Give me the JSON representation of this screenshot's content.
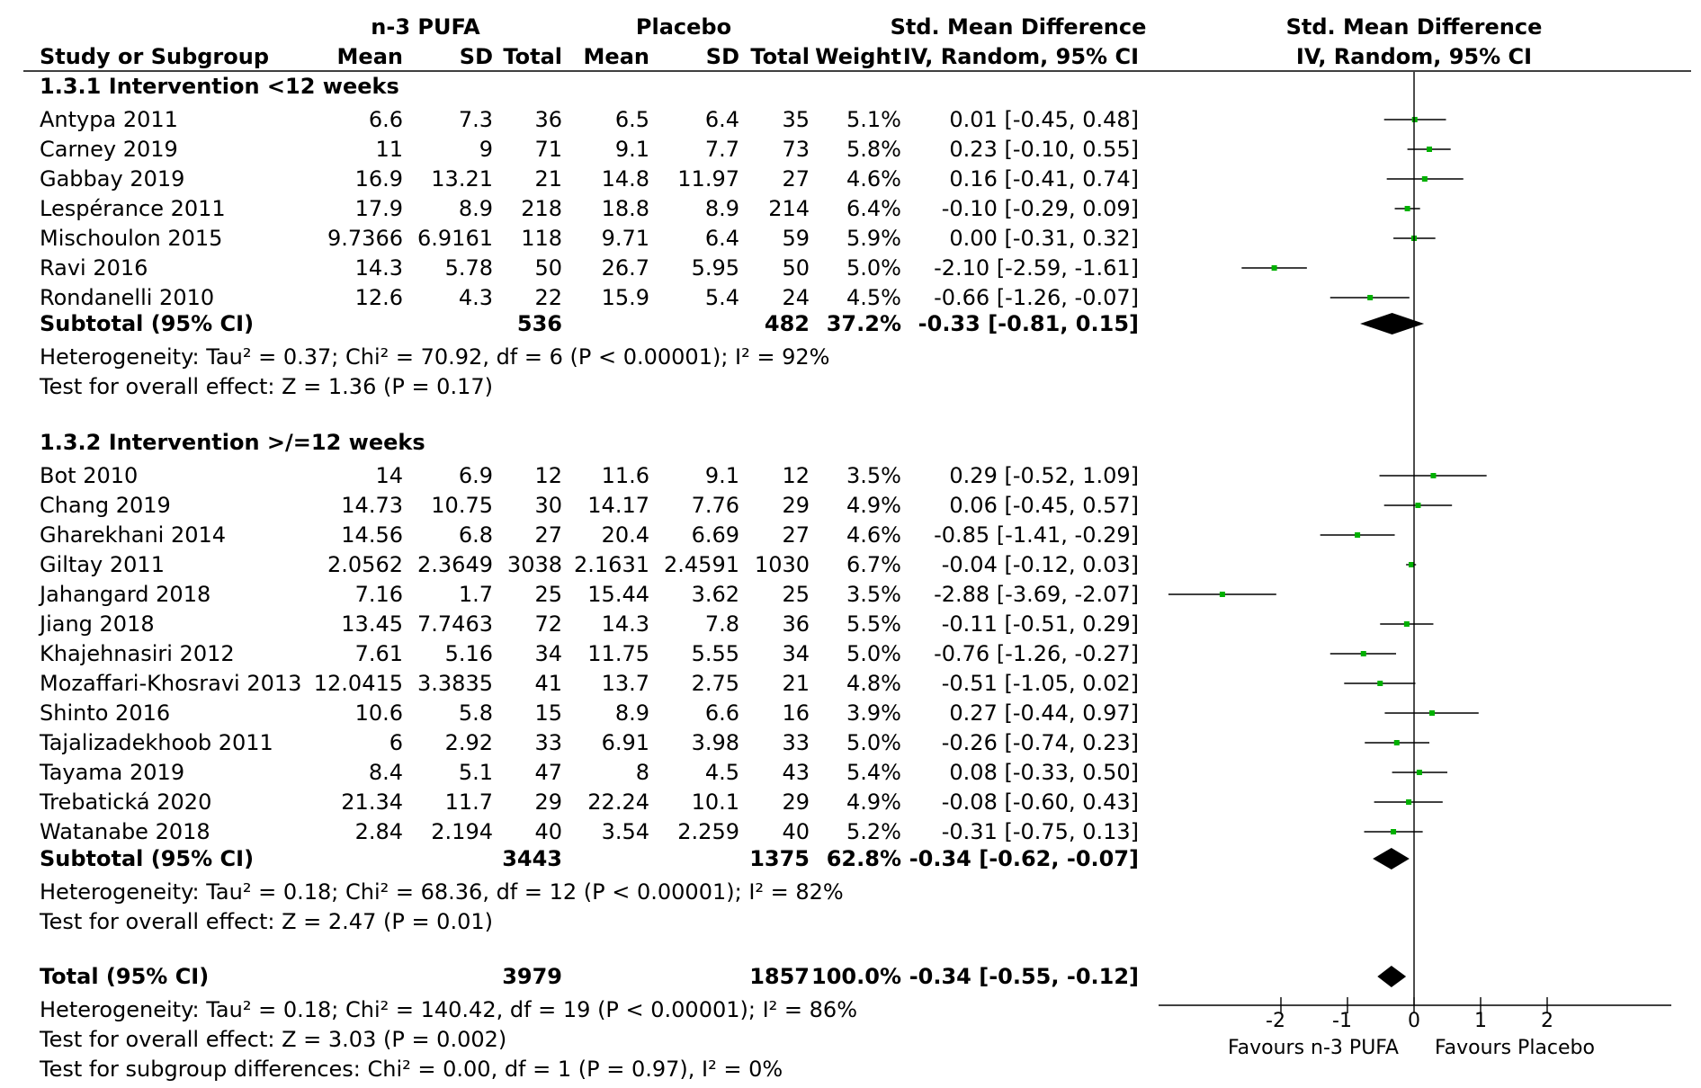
{
  "header": {
    "group1": "n-3 PUFA",
    "group2": "Placebo",
    "smd_title": "Std. Mean Difference",
    "smd_method": "IV, Random, 95% CI",
    "plot_title": "Std. Mean Difference",
    "plot_method": "IV, Random, 95% CI",
    "study_col": "Study or Subgroup",
    "mean1": "Mean",
    "sd1": "SD",
    "total1": "Total",
    "mean2": "Mean",
    "sd2": "SD",
    "total2": "Total",
    "weight": "Weight"
  },
  "subgroups": [
    {
      "title": "1.3.1 Intervention <12 weeks",
      "subtotal": {
        "label": "Subtotal (95% CI)",
        "n1": "536",
        "n2": "482",
        "weight": "37.2%",
        "ci": "-0.33 [-0.81, 0.15]"
      },
      "heterogeneity": "Heterogeneity: Tau² = 0.37; Chi² = 70.92, df = 6 (P < 0.00001); I² = 92%",
      "overall": "Test for overall effect: Z = 1.36 (P = 0.17)"
    },
    {
      "title": "1.3.2 Intervention >/=12 weeks",
      "subtotal": {
        "label": "Subtotal (95% CI)",
        "n1": "3443",
        "n2": "1375",
        "weight": "62.8%",
        "ci": "-0.34 [-0.62, -0.07]"
      },
      "heterogeneity": "Heterogeneity: Tau² = 0.18; Chi² = 68.36, df = 12 (P < 0.00001); I² = 82%",
      "overall": "Test for overall effect: Z = 2.47 (P = 0.01)"
    }
  ],
  "total": {
    "label": "Total (95% CI)",
    "n1": "3979",
    "n2": "1857",
    "weight": "100.0%",
    "ci": "-0.34 [-0.55, -0.12]",
    "heterogeneity": "Heterogeneity: Tau² = 0.18; Chi² = 140.42, df = 19 (P < 0.00001); I² = 86%",
    "overall": "Test for overall effect: Z = 3.03 (P = 0.002)",
    "subgroup_diff": "Test for subgroup differences: Chi² = 0.00, df = 1 (P = 0.97), I² = 0%"
  },
  "axis": {
    "ticks": [
      "-2",
      "-1",
      "0",
      "1",
      "2"
    ],
    "left_label": "Favours n-3 PUFA",
    "right_label": "Favours Placebo"
  },
  "colors": {
    "point": "#00b000",
    "diamond": "#000000",
    "line": "#000000"
  },
  "chart_data": {
    "type": "forest",
    "title": "Std. Mean Difference",
    "xlabel": "IV, Random, 95% CI",
    "xlim": [
      -4,
      4
    ],
    "studies": [
      {
        "name": "Antypa 2011",
        "group": 0,
        "mean1": "6.6",
        "sd1": "7.3",
        "n1": "36",
        "mean2": "6.5",
        "sd2": "6.4",
        "n2": "35",
        "weight": "5.1%",
        "ci": "0.01 [-0.45, 0.48]",
        "est": 0.01,
        "lo": -0.45,
        "hi": 0.48
      },
      {
        "name": "Carney 2019",
        "group": 0,
        "mean1": "11",
        "sd1": "9",
        "n1": "71",
        "mean2": "9.1",
        "sd2": "7.7",
        "n2": "73",
        "weight": "5.8%",
        "ci": "0.23 [-0.10, 0.55]",
        "est": 0.23,
        "lo": -0.1,
        "hi": 0.55
      },
      {
        "name": "Gabbay 2019",
        "group": 0,
        "mean1": "16.9",
        "sd1": "13.21",
        "n1": "21",
        "mean2": "14.8",
        "sd2": "11.97",
        "n2": "27",
        "weight": "4.6%",
        "ci": "0.16 [-0.41, 0.74]",
        "est": 0.16,
        "lo": -0.41,
        "hi": 0.74
      },
      {
        "name": "Lespérance 2011",
        "group": 0,
        "mean1": "17.9",
        "sd1": "8.9",
        "n1": "218",
        "mean2": "18.8",
        "sd2": "8.9",
        "n2": "214",
        "weight": "6.4%",
        "ci": "-0.10 [-0.29, 0.09]",
        "est": -0.1,
        "lo": -0.29,
        "hi": 0.09
      },
      {
        "name": "Mischoulon 2015",
        "group": 0,
        "mean1": "9.7366",
        "sd1": "6.9161",
        "n1": "118",
        "mean2": "9.71",
        "sd2": "6.4",
        "n2": "59",
        "weight": "5.9%",
        "ci": "0.00 [-0.31, 0.32]",
        "est": 0.0,
        "lo": -0.31,
        "hi": 0.32
      },
      {
        "name": "Ravi 2016",
        "group": 0,
        "mean1": "14.3",
        "sd1": "5.78",
        "n1": "50",
        "mean2": "26.7",
        "sd2": "5.95",
        "n2": "50",
        "weight": "5.0%",
        "ci": "-2.10 [-2.59, -1.61]",
        "est": -2.1,
        "lo": -2.59,
        "hi": -1.61
      },
      {
        "name": "Rondanelli 2010",
        "group": 0,
        "mean1": "12.6",
        "sd1": "4.3",
        "n1": "22",
        "mean2": "15.9",
        "sd2": "5.4",
        "n2": "24",
        "weight": "4.5%",
        "ci": "-0.66 [-1.26, -0.07]",
        "est": -0.66,
        "lo": -1.26,
        "hi": -0.07
      },
      {
        "name": "Bot 2010",
        "group": 1,
        "mean1": "14",
        "sd1": "6.9",
        "n1": "12",
        "mean2": "11.6",
        "sd2": "9.1",
        "n2": "12",
        "weight": "3.5%",
        "ci": "0.29 [-0.52, 1.09]",
        "est": 0.29,
        "lo": -0.52,
        "hi": 1.09
      },
      {
        "name": "Chang 2019",
        "group": 1,
        "mean1": "14.73",
        "sd1": "10.75",
        "n1": "30",
        "mean2": "14.17",
        "sd2": "7.76",
        "n2": "29",
        "weight": "4.9%",
        "ci": "0.06 [-0.45, 0.57]",
        "est": 0.06,
        "lo": -0.45,
        "hi": 0.57
      },
      {
        "name": "Gharekhani 2014",
        "group": 1,
        "mean1": "14.56",
        "sd1": "6.8",
        "n1": "27",
        "mean2": "20.4",
        "sd2": "6.69",
        "n2": "27",
        "weight": "4.6%",
        "ci": "-0.85 [-1.41, -0.29]",
        "est": -0.85,
        "lo": -1.41,
        "hi": -0.29
      },
      {
        "name": "Giltay 2011",
        "group": 1,
        "mean1": "2.0562",
        "sd1": "2.3649",
        "n1": "3038",
        "mean2": "2.1631",
        "sd2": "2.4591",
        "n2": "1030",
        "weight": "6.7%",
        "ci": "-0.04 [-0.12, 0.03]",
        "est": -0.04,
        "lo": -0.12,
        "hi": 0.03
      },
      {
        "name": "Jahangard 2018",
        "group": 1,
        "mean1": "7.16",
        "sd1": "1.7",
        "n1": "25",
        "mean2": "15.44",
        "sd2": "3.62",
        "n2": "25",
        "weight": "3.5%",
        "ci": "-2.88 [-3.69, -2.07]",
        "est": -2.88,
        "lo": -3.69,
        "hi": -2.07
      },
      {
        "name": "Jiang 2018",
        "group": 1,
        "mean1": "13.45",
        "sd1": "7.7463",
        "n1": "72",
        "mean2": "14.3",
        "sd2": "7.8",
        "n2": "36",
        "weight": "5.5%",
        "ci": "-0.11 [-0.51, 0.29]",
        "est": -0.11,
        "lo": -0.51,
        "hi": 0.29
      },
      {
        "name": "Khajehnasiri 2012",
        "group": 1,
        "mean1": "7.61",
        "sd1": "5.16",
        "n1": "34",
        "mean2": "11.75",
        "sd2": "5.55",
        "n2": "34",
        "weight": "5.0%",
        "ci": "-0.76 [-1.26, -0.27]",
        "est": -0.76,
        "lo": -1.26,
        "hi": -0.27
      },
      {
        "name": "Mozaffari-Khosravi 2013",
        "group": 1,
        "mean1": "12.0415",
        "sd1": "3.3835",
        "n1": "41",
        "mean2": "13.7",
        "sd2": "2.75",
        "n2": "21",
        "weight": "4.8%",
        "ci": "-0.51 [-1.05, 0.02]",
        "est": -0.51,
        "lo": -1.05,
        "hi": 0.02
      },
      {
        "name": "Shinto 2016",
        "group": 1,
        "mean1": "10.6",
        "sd1": "5.8",
        "n1": "15",
        "mean2": "8.9",
        "sd2": "6.6",
        "n2": "16",
        "weight": "3.9%",
        "ci": "0.27 [-0.44, 0.97]",
        "est": 0.27,
        "lo": -0.44,
        "hi": 0.97
      },
      {
        "name": "Tajalizadekhoob 2011",
        "group": 1,
        "mean1": "6",
        "sd1": "2.92",
        "n1": "33",
        "mean2": "6.91",
        "sd2": "3.98",
        "n2": "33",
        "weight": "5.0%",
        "ci": "-0.26 [-0.74, 0.23]",
        "est": -0.26,
        "lo": -0.74,
        "hi": 0.23
      },
      {
        "name": "Tayama 2019",
        "group": 1,
        "mean1": "8.4",
        "sd1": "5.1",
        "n1": "47",
        "mean2": "8",
        "sd2": "4.5",
        "n2": "43",
        "weight": "5.4%",
        "ci": "0.08 [-0.33, 0.50]",
        "est": 0.08,
        "lo": -0.33,
        "hi": 0.5
      },
      {
        "name": "Trebatická 2020",
        "group": 1,
        "mean1": "21.34",
        "sd1": "11.7",
        "n1": "29",
        "mean2": "22.24",
        "sd2": "10.1",
        "n2": "29",
        "weight": "4.9%",
        "ci": "-0.08 [-0.60, 0.43]",
        "est": -0.08,
        "lo": -0.6,
        "hi": 0.43
      },
      {
        "name": "Watanabe 2018",
        "group": 1,
        "mean1": "2.84",
        "sd1": "2.194",
        "n1": "40",
        "mean2": "3.54",
        "sd2": "2.259",
        "n2": "40",
        "weight": "5.2%",
        "ci": "-0.31 [-0.75, 0.13]",
        "est": -0.31,
        "lo": -0.75,
        "hi": 0.13
      }
    ],
    "pooled": [
      {
        "name": "Subtotal (95% CI) 1.3.1",
        "est": -0.33,
        "lo": -0.81,
        "hi": 0.15
      },
      {
        "name": "Subtotal (95% CI) 1.3.2",
        "est": -0.34,
        "lo": -0.62,
        "hi": -0.07
      },
      {
        "name": "Total (95% CI)",
        "est": -0.34,
        "lo": -0.55,
        "hi": -0.12
      }
    ]
  }
}
